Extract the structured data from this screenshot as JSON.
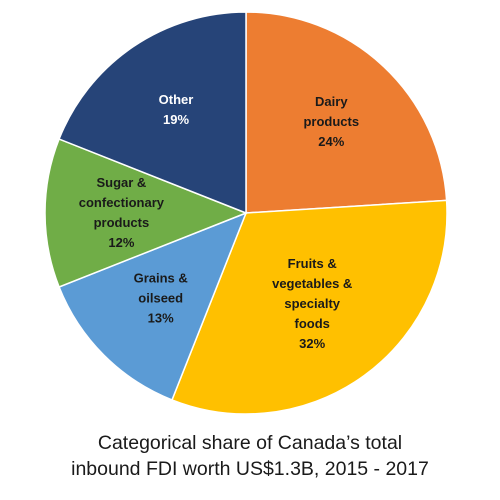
{
  "chart_data": {
    "type": "pie",
    "title_lines": [
      "Categorical share of Canada’s total",
      "inbound FDI worth US$1.3B, 2015 - 2017"
    ],
    "slices": [
      {
        "label": [
          "Dairy",
          "products"
        ],
        "percent_text": "24%",
        "value": 24,
        "color": "#ED7D31",
        "text_color": "#1a1a1a"
      },
      {
        "label": [
          "Fruits &",
          "vegetables &",
          "specialty",
          "foods"
        ],
        "percent_text": "32%",
        "value": 32,
        "color": "#FFC000",
        "text_color": "#1a1a1a"
      },
      {
        "label": [
          "Grains &",
          "oilseed"
        ],
        "percent_text": "13%",
        "value": 13,
        "color": "#5B9BD5",
        "text_color": "#1a1a1a"
      },
      {
        "label": [
          "Sugar &",
          "confectionary",
          "products"
        ],
        "percent_text": "12%",
        "value": 12,
        "color": "#70AD47",
        "text_color": "#1a1a1a"
      },
      {
        "label": [
          "Other"
        ],
        "percent_text": "19%",
        "value": 19,
        "color": "#264478",
        "text_color": "#ffffff"
      }
    ]
  }
}
